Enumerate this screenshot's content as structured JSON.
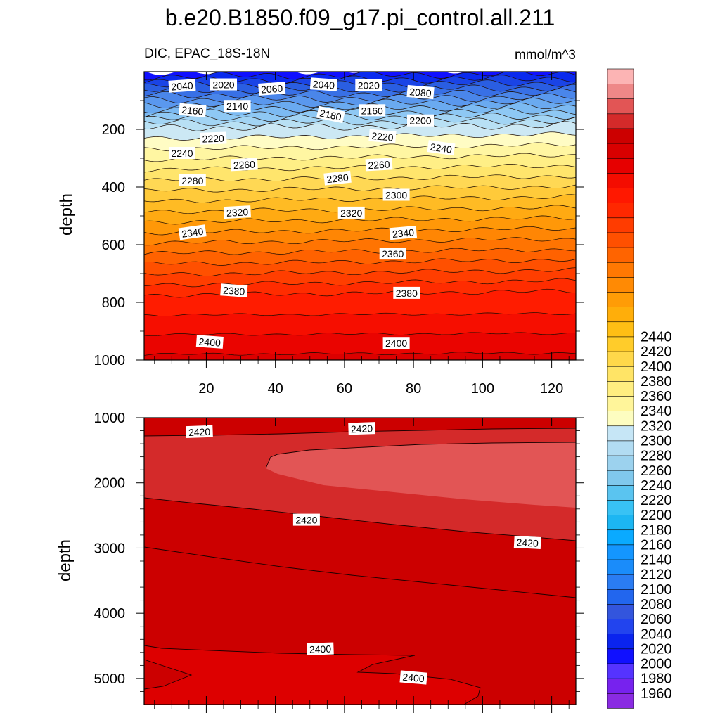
{
  "chart_data": {
    "type": "heatmap",
    "title": "b.e20.B1850.f09_g17.pi_control.all.211",
    "left_subtitle": "DIC, EPAC_18S-18N",
    "units": "mmol/m^3",
    "ylabel": "depth",
    "x_ticks": [
      "20",
      "40",
      "60",
      "80",
      "100",
      "120"
    ],
    "xlim": [
      2,
      127
    ],
    "top_panel": {
      "ylim": [
        0,
        1000
      ],
      "y_ticks": [
        "200",
        "400",
        "600",
        "800",
        "1000"
      ],
      "contour_labels": [
        {
          "text": "2040",
          "x": 13,
          "y": 50,
          "rot": -4
        },
        {
          "text": "2020",
          "x": 25,
          "y": 45,
          "rot": 0
        },
        {
          "text": "2060",
          "x": 39,
          "y": 60,
          "rot": -4
        },
        {
          "text": "2040",
          "x": 54,
          "y": 45,
          "rot": 4
        },
        {
          "text": "2020",
          "x": 67,
          "y": 47,
          "rot": 0
        },
        {
          "text": "2080",
          "x": 82,
          "y": 72,
          "rot": 5
        },
        {
          "text": "2160",
          "x": 16,
          "y": 135,
          "rot": 5
        },
        {
          "text": "2140",
          "x": 29,
          "y": 120,
          "rot": 0
        },
        {
          "text": "2180",
          "x": 56,
          "y": 150,
          "rot": 12
        },
        {
          "text": "2160",
          "x": 68,
          "y": 135,
          "rot": 0
        },
        {
          "text": "2200",
          "x": 82,
          "y": 170,
          "rot": 0
        },
        {
          "text": "2220",
          "x": 22,
          "y": 232,
          "rot": -2
        },
        {
          "text": "2220",
          "x": 71,
          "y": 225,
          "rot": 5
        },
        {
          "text": "2240",
          "x": 13,
          "y": 283,
          "rot": 0
        },
        {
          "text": "2240",
          "x": 88,
          "y": 265,
          "rot": 8
        },
        {
          "text": "2260",
          "x": 31,
          "y": 323,
          "rot": -3
        },
        {
          "text": "2260",
          "x": 70,
          "y": 323,
          "rot": -3
        },
        {
          "text": "2280",
          "x": 16,
          "y": 378,
          "rot": 0
        },
        {
          "text": "2280",
          "x": 58,
          "y": 370,
          "rot": -6
        },
        {
          "text": "2300",
          "x": 75,
          "y": 428,
          "rot": 0
        },
        {
          "text": "2320",
          "x": 29,
          "y": 488,
          "rot": -3
        },
        {
          "text": "2320",
          "x": 62,
          "y": 490,
          "rot": 0
        },
        {
          "text": "2340",
          "x": 16,
          "y": 558,
          "rot": -8
        },
        {
          "text": "2340",
          "x": 77,
          "y": 560,
          "rot": -5
        },
        {
          "text": "2360",
          "x": 74,
          "y": 632,
          "rot": 0
        },
        {
          "text": "2380",
          "x": 28,
          "y": 760,
          "rot": 4
        },
        {
          "text": "2380",
          "x": 78,
          "y": 768,
          "rot": 0
        },
        {
          "text": "2400",
          "x": 21,
          "y": 938,
          "rot": 4
        },
        {
          "text": "2400",
          "x": 75,
          "y": 942,
          "rot": 0
        }
      ]
    },
    "bottom_panel": {
      "ylim": [
        1000,
        5400
      ],
      "y_ticks": [
        "1000",
        "2000",
        "3000",
        "4000",
        "5000"
      ],
      "contour_labels": [
        {
          "text": "2420",
          "x": 18,
          "y": 1220,
          "rot": -2
        },
        {
          "text": "2420",
          "x": 65,
          "y": 1170,
          "rot": -2
        },
        {
          "text": "2420",
          "x": 49,
          "y": 2570,
          "rot": 0
        },
        {
          "text": "2420",
          "x": 113,
          "y": 2920,
          "rot": 3
        },
        {
          "text": "2400",
          "x": 53,
          "y": 4550,
          "rot": -2
        },
        {
          "text": "2400",
          "x": 80,
          "y": 4990,
          "rot": 5
        }
      ]
    },
    "colorbar": {
      "levels": [
        "1960",
        "1980",
        "2000",
        "2020",
        "2040",
        "2060",
        "2080",
        "2100",
        "2120",
        "2140",
        "2160",
        "2180",
        "2200",
        "2220",
        "2240",
        "2260",
        "2280",
        "2300",
        "2320",
        "2340",
        "2360",
        "2380",
        "2400",
        "2420",
        "2440"
      ],
      "label_start": 1960,
      "label_step": 20,
      "colors": [
        "#8a2be2",
        "#7722ee",
        "#5533ff",
        "#1010ff",
        "#0a24ee",
        "#2244ee",
        "#3355dd",
        "#2266ee",
        "#2a7cf2",
        "#1a8cfa",
        "#1496ff",
        "#0aaaff",
        "#1cb6f2",
        "#38c2f4",
        "#5ac4f0",
        "#80c8ec",
        "#9cd2ee",
        "#b2dcf2",
        "#c6e6f6",
        "#fdfdc0",
        "#fff59a",
        "#ffee80",
        "#ffe466",
        "#ffd84a",
        "#ffcc2a",
        "#ffbe14",
        "#ffae0a",
        "#ff9c06",
        "#ff8a04",
        "#ff7802",
        "#ff6400",
        "#ff5000",
        "#ff3c00",
        "#ff2800",
        "#ff1800",
        "#f40c00",
        "#e60000",
        "#d80000",
        "#cc0000",
        "#d42a2a",
        "#e25555",
        "#ee8888",
        "#fcb4b4"
      ]
    }
  }
}
